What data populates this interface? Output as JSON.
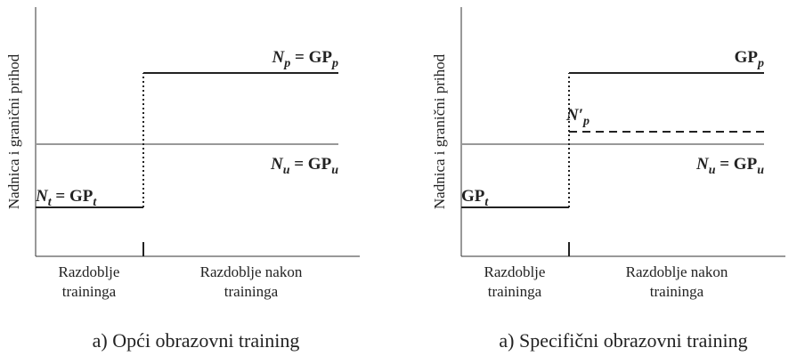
{
  "panels": [
    {
      "y_axis_label": "Nadnica i granični prihod",
      "categories": [
        [
          "Razdoblje",
          "traininga"
        ],
        [
          "Razdoblje nakon",
          "traininga"
        ]
      ],
      "labels": {
        "high": [
          "N",
          "p",
          " = GP",
          "p"
        ],
        "unit": [
          "N",
          "u",
          " = GP",
          "u"
        ],
        "low": [
          "N",
          "t",
          " = GP",
          "t"
        ]
      },
      "caption": "a) Opći obrazovni training"
    },
    {
      "y_axis_label": "Nadnica i granični prihod",
      "categories": [
        [
          "Razdoblje",
          "traininga"
        ],
        [
          "Razdoblje nakon",
          "traininga"
        ]
      ],
      "labels": {
        "high": [
          "GP",
          "p"
        ],
        "dashed": [
          "N′",
          "p"
        ],
        "unit": [
          "N",
          "u",
          " = GP",
          "u"
        ],
        "low": [
          "GP",
          "t"
        ]
      },
      "caption": "a) Specifični obrazovni training"
    }
  ]
}
